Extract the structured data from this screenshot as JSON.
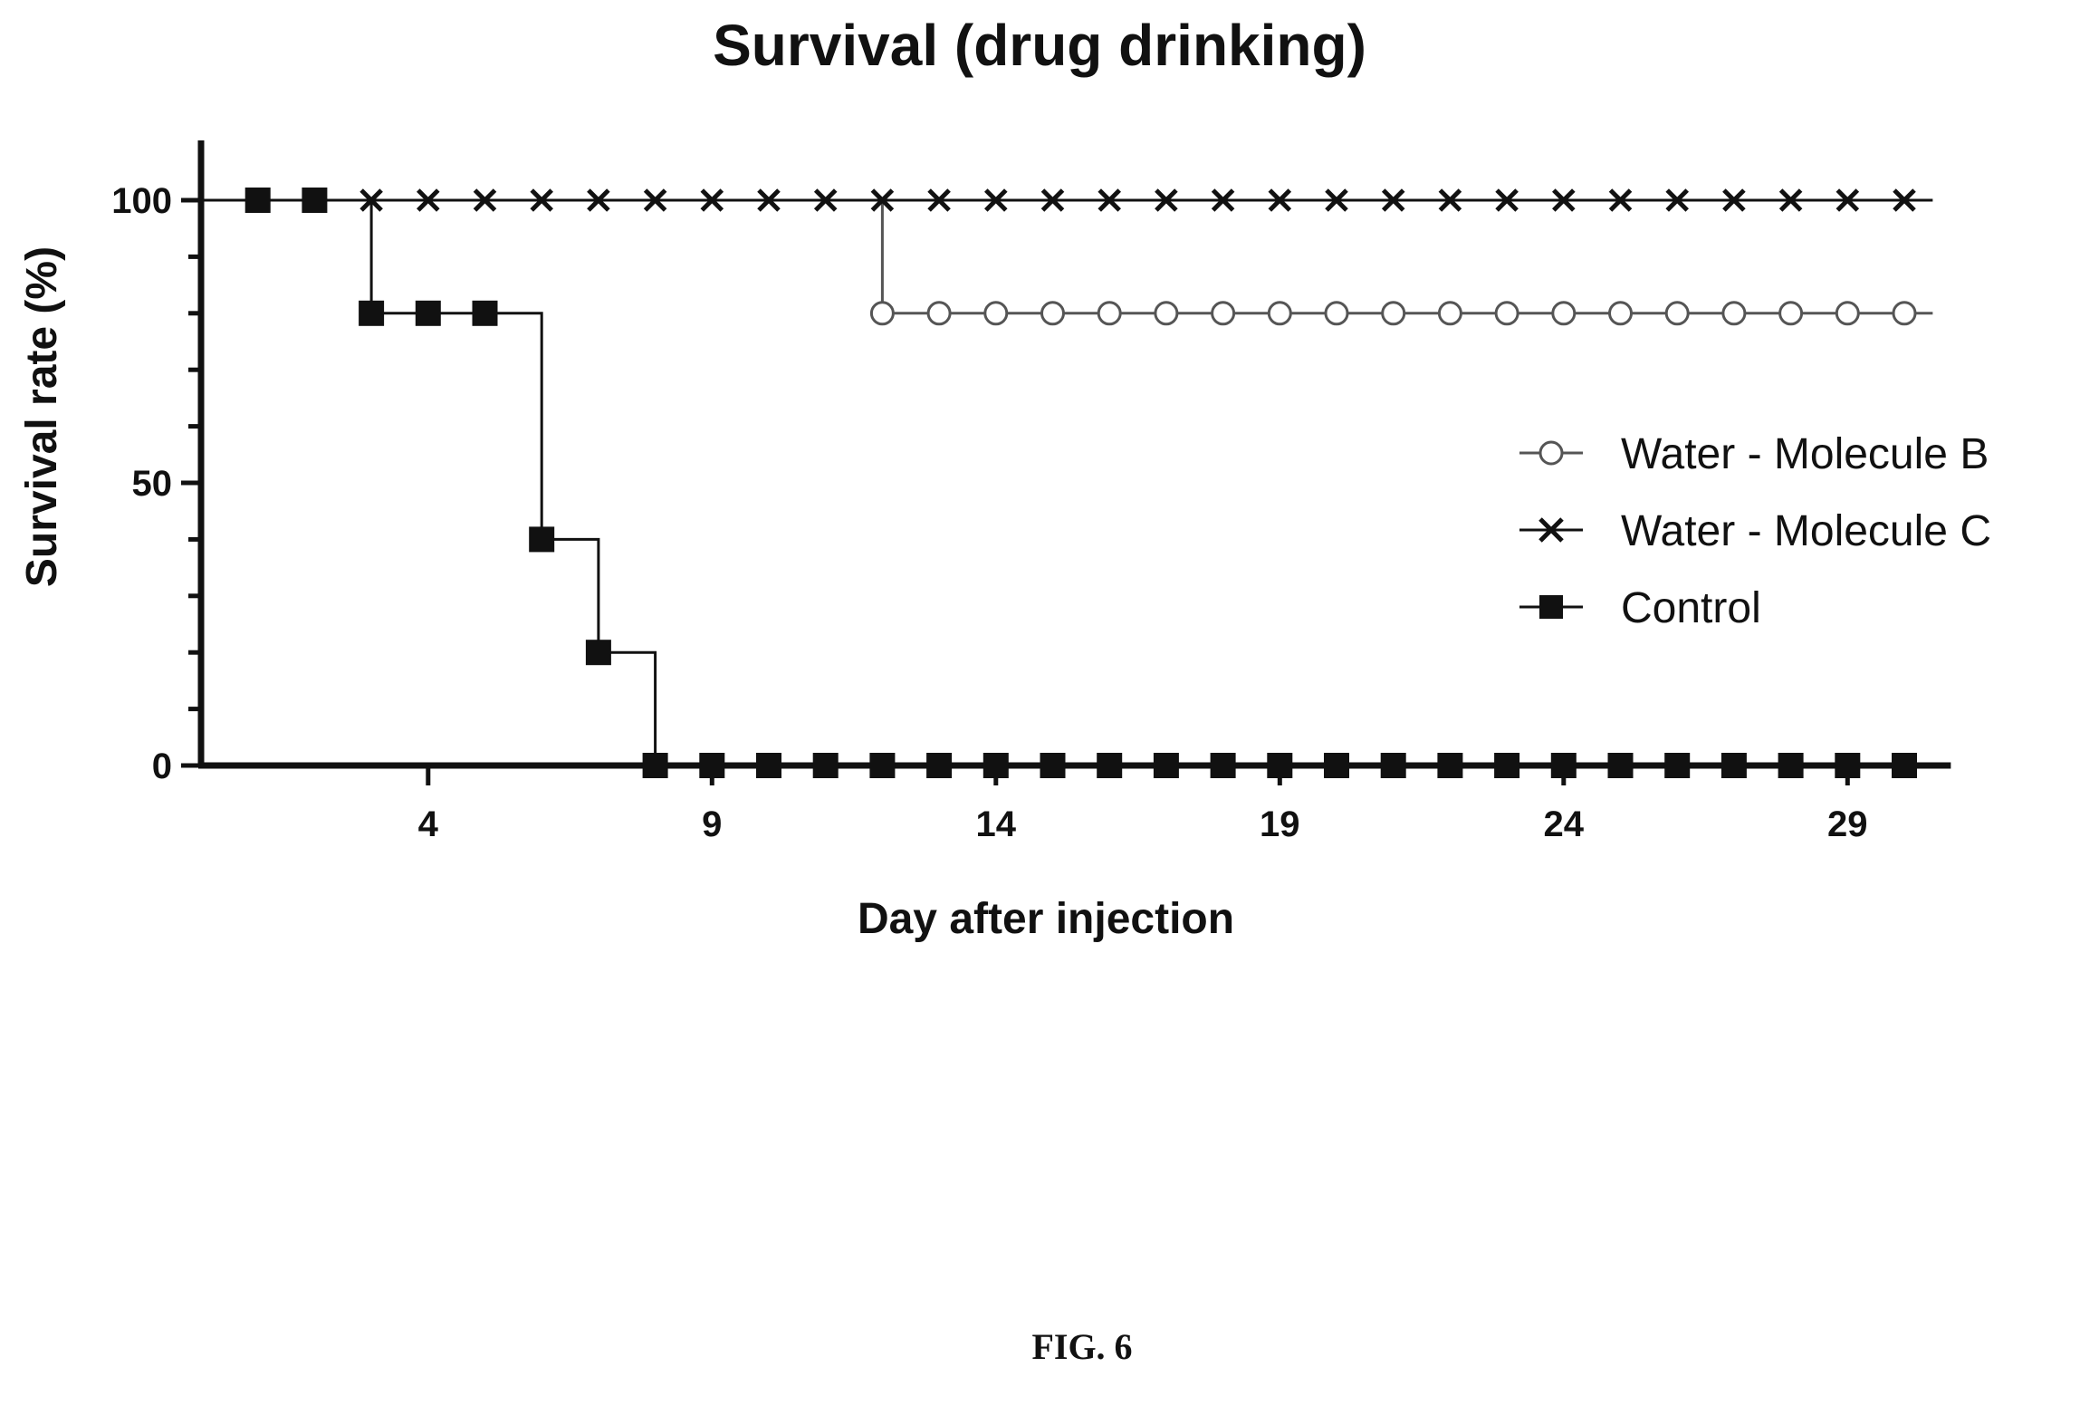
{
  "chart_data": {
    "type": "line",
    "title": "Survival (drug drinking)",
    "xlabel": "Day after injection",
    "ylabel": "Survival rate (%)",
    "xlim": [
      0,
      30.5
    ],
    "ylim": [
      0,
      100
    ],
    "xticks": [
      4,
      9,
      14,
      19,
      24,
      29
    ],
    "yticks": [
      0,
      50,
      100
    ],
    "grid": false,
    "legend_position": "right",
    "series": [
      {
        "name": "Water - Molecule B",
        "marker": "open-circle",
        "color": "#555555",
        "step_points": [
          [
            0,
            100
          ],
          [
            12,
            100
          ],
          [
            12,
            80
          ],
          [
            30.5,
            80
          ]
        ],
        "marker_x": [
          12,
          13,
          14,
          15,
          16,
          17,
          18,
          19,
          20,
          21,
          22,
          23,
          24,
          25,
          26,
          27,
          28,
          29,
          30
        ],
        "marker_y": 80
      },
      {
        "name": "Water - Molecule C",
        "marker": "x",
        "color": "#111111",
        "step_points": [
          [
            0,
            100
          ],
          [
            30.5,
            100
          ]
        ],
        "marker_x": [
          3,
          4,
          5,
          6,
          7,
          8,
          9,
          10,
          11,
          12,
          13,
          14,
          15,
          16,
          17,
          18,
          19,
          20,
          21,
          22,
          23,
          24,
          25,
          26,
          27,
          28,
          29,
          30
        ],
        "marker_y": 100
      },
      {
        "name": "Control",
        "marker": "filled-square",
        "color": "#111111",
        "step_points": [
          [
            0,
            100
          ],
          [
            3,
            100
          ],
          [
            3,
            80
          ],
          [
            6,
            80
          ],
          [
            6,
            40
          ],
          [
            7,
            40
          ],
          [
            7,
            20
          ],
          [
            8,
            20
          ],
          [
            8,
            0
          ],
          [
            30.5,
            0
          ]
        ],
        "markers": [
          [
            1,
            100
          ],
          [
            2,
            100
          ],
          [
            3,
            80
          ],
          [
            4,
            80
          ],
          [
            5,
            80
          ],
          [
            6,
            40
          ],
          [
            7,
            20
          ],
          [
            8,
            0
          ],
          [
            9,
            0
          ],
          [
            10,
            0
          ],
          [
            11,
            0
          ],
          [
            12,
            0
          ],
          [
            13,
            0
          ],
          [
            14,
            0
          ],
          [
            15,
            0
          ],
          [
            16,
            0
          ],
          [
            17,
            0
          ],
          [
            18,
            0
          ],
          [
            19,
            0
          ],
          [
            20,
            0
          ],
          [
            21,
            0
          ],
          [
            22,
            0
          ],
          [
            23,
            0
          ],
          [
            24,
            0
          ],
          [
            25,
            0
          ],
          [
            26,
            0
          ],
          [
            27,
            0
          ],
          [
            28,
            0
          ],
          [
            29,
            0
          ],
          [
            30,
            0
          ]
        ]
      }
    ]
  },
  "caption": "FIG. 6"
}
